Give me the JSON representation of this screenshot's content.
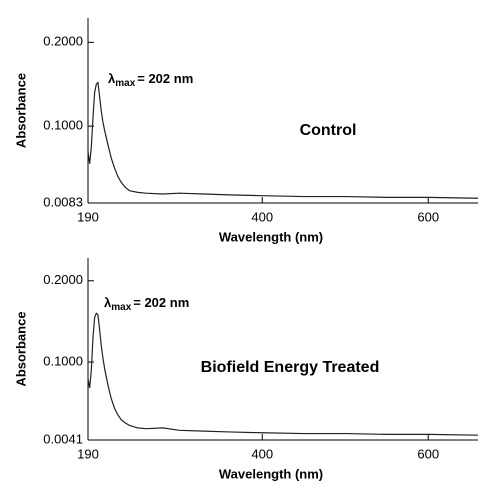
{
  "chart_data": [
    {
      "type": "line",
      "label": "Control",
      "annotation": {
        "symbol": "λ",
        "subscript": "max",
        "text": "= 202 nm"
      },
      "xlabel": "Wavelength (nm)",
      "ylabel": "Absorbance",
      "color": "#222222",
      "x": [
        190,
        192,
        194,
        196,
        198,
        200,
        202,
        204,
        206,
        208,
        210,
        214,
        218,
        222,
        226,
        230,
        235,
        240,
        250,
        260,
        280,
        300,
        330,
        360,
        400,
        450,
        500,
        550,
        600,
        660
      ],
      "values": [
        0.07,
        0.055,
        0.075,
        0.11,
        0.14,
        0.15,
        0.152,
        0.135,
        0.118,
        0.105,
        0.095,
        0.078,
        0.062,
        0.05,
        0.04,
        0.033,
        0.027,
        0.023,
        0.021,
        0.02,
        0.019,
        0.02,
        0.019,
        0.018,
        0.017,
        0.016,
        0.016,
        0.015,
        0.015,
        0.014
      ],
      "xlim": [
        190,
        660
      ],
      "ylim": [
        0.0083,
        0.229
      ],
      "xticks": [
        190,
        400,
        600
      ],
      "yticks": [
        {
          "value": 0.2,
          "label": "0.2000"
        },
        {
          "value": 0.1,
          "label": "0.1000"
        },
        0.0083
      ]
    },
    {
      "type": "line",
      "label": "Biofield Energy Treated",
      "annotation": {
        "symbol": "λ",
        "subscript": "max",
        "text": "= 202 nm"
      },
      "xlabel": "Wavelength (nm)",
      "ylabel": "Absorbance",
      "color": "#222222",
      "x": [
        190,
        192,
        194,
        196,
        198,
        200,
        202,
        204,
        206,
        208,
        210,
        214,
        218,
        222,
        226,
        230,
        235,
        240,
        250,
        260,
        280,
        300,
        330,
        360,
        400,
        450,
        500,
        550,
        600,
        660
      ],
      "values": [
        0.08,
        0.068,
        0.09,
        0.13,
        0.155,
        0.16,
        0.158,
        0.14,
        0.12,
        0.105,
        0.092,
        0.072,
        0.055,
        0.043,
        0.035,
        0.029,
        0.025,
        0.022,
        0.019,
        0.018,
        0.019,
        0.016,
        0.015,
        0.014,
        0.013,
        0.012,
        0.012,
        0.011,
        0.011,
        0.01
      ],
      "xlim": [
        190,
        660
      ],
      "ylim": [
        0.0041,
        0.228
      ],
      "xticks": [
        190,
        400,
        600
      ],
      "yticks": [
        {
          "value": 0.2,
          "label": "0.2000"
        },
        {
          "value": 0.1,
          "label": "0.1000"
        },
        0.0041
      ]
    }
  ]
}
